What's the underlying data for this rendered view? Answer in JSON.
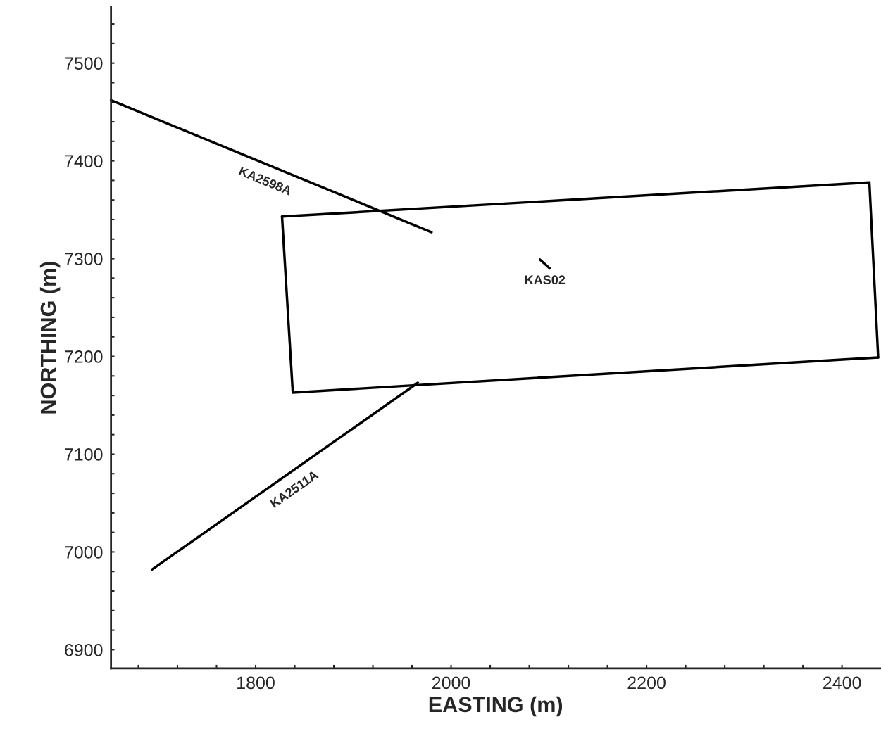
{
  "chart_data": {
    "type": "line",
    "xlabel": "EASTING (m)",
    "ylabel": "NORTHING (m)",
    "xlim": [
      1652,
      2439
    ],
    "ylim": [
      6881,
      7557
    ],
    "xticks": [
      {
        "value": 1680,
        "label": null
      },
      {
        "value": 1720,
        "label": null
      },
      {
        "value": 1760,
        "label": null
      },
      1800,
      {
        "value": 1840,
        "label": null
      },
      {
        "value": 1880,
        "label": null
      },
      {
        "value": 1920,
        "label": null
      },
      {
        "value": 1960,
        "label": null
      },
      2000,
      {
        "value": 2040,
        "label": null
      },
      {
        "value": 2080,
        "label": null
      },
      {
        "value": 2120,
        "label": null
      },
      {
        "value": 2160,
        "label": null
      },
      2200,
      {
        "value": 2240,
        "label": null
      },
      {
        "value": 2280,
        "label": null
      },
      {
        "value": 2320,
        "label": null
      },
      {
        "value": 2360,
        "label": null
      },
      2400
    ],
    "yticks": [
      6900,
      {
        "value": 6920,
        "label": null
      },
      {
        "value": 6940,
        "label": null
      },
      {
        "value": 6960,
        "label": null
      },
      {
        "value": 6980,
        "label": null
      },
      7000,
      {
        "value": 7020,
        "label": null
      },
      {
        "value": 7040,
        "label": null
      },
      {
        "value": 7060,
        "label": null
      },
      {
        "value": 7080,
        "label": null
      },
      7100,
      {
        "value": 7120,
        "label": null
      },
      {
        "value": 7140,
        "label": null
      },
      {
        "value": 7160,
        "label": null
      },
      {
        "value": 7180,
        "label": null
      },
      7200,
      {
        "value": 7220,
        "label": null
      },
      {
        "value": 7240,
        "label": null
      },
      {
        "value": 7260,
        "label": null
      },
      {
        "value": 7280,
        "label": null
      },
      7300,
      {
        "value": 7320,
        "label": null
      },
      {
        "value": 7340,
        "label": null
      },
      {
        "value": 7360,
        "label": null
      },
      {
        "value": 7380,
        "label": null
      },
      7400,
      {
        "value": 7420,
        "label": null
      },
      {
        "value": 7440,
        "label": null
      },
      {
        "value": 7460,
        "label": null
      },
      {
        "value": 7480,
        "label": null
      },
      7500,
      {
        "value": 7520,
        "label": null
      },
      {
        "value": 7540,
        "label": null
      }
    ],
    "grid": false,
    "series": [
      {
        "name": "KA2598A",
        "color": "#000000",
        "x": [
          1652,
          1980
        ],
        "values": [
          7462,
          7327
        ]
      },
      {
        "name": "KA2511A",
        "color": "#000000",
        "x": [
          1694,
          1966
        ],
        "values": [
          6982,
          7173
        ]
      },
      {
        "name": "KAS02",
        "color": "#000000",
        "x": [
          2091,
          2101
        ],
        "values": [
          7299,
          7290
        ]
      },
      {
        "color": "#000000",
        "x": [
          1827,
          2428,
          2437
        ],
        "values": [
          7343,
          7378,
          7199
        ]
      },
      {
        "color": "#000000",
        "x": [
          2437,
          1838,
          1827
        ],
        "values": [
          7199,
          7163,
          7343
        ]
      }
    ]
  }
}
